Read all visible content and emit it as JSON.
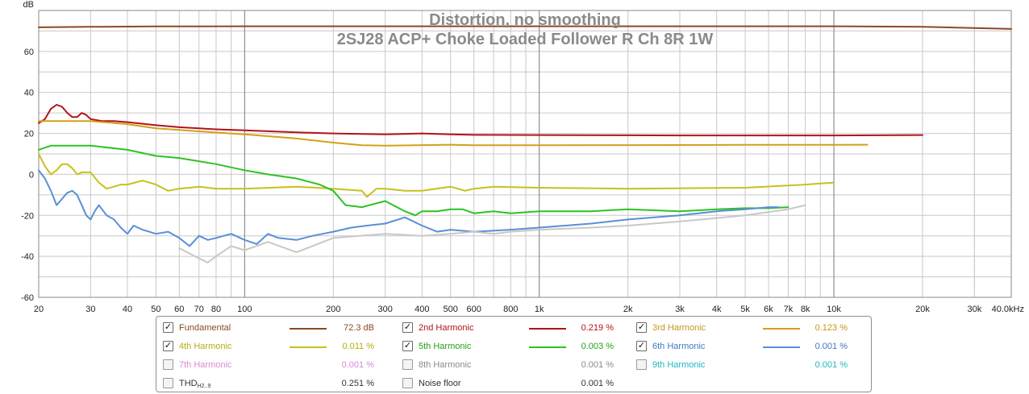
{
  "chart_data": {
    "type": "line",
    "title": "Distortion, no smoothing",
    "subtitle": "2SJ28 ACP+ Choke Loaded Follower R Ch 8R 1W",
    "ylabel": "dB",
    "xlabel": "",
    "x_scale": "log",
    "xlim": [
      20,
      40000
    ],
    "ylim": [
      -60,
      80
    ],
    "grid": true,
    "x_tick_labels": [
      {
        "v": 20,
        "t": "20"
      },
      {
        "v": 30,
        "t": "30"
      },
      {
        "v": 40,
        "t": "40"
      },
      {
        "v": 50,
        "t": "50"
      },
      {
        "v": 60,
        "t": "60"
      },
      {
        "v": 70,
        "t": "70"
      },
      {
        "v": 80,
        "t": "80"
      },
      {
        "v": 100,
        "t": "100"
      },
      {
        "v": 200,
        "t": "200"
      },
      {
        "v": 300,
        "t": "300"
      },
      {
        "v": 400,
        "t": "400"
      },
      {
        "v": 500,
        "t": "500"
      },
      {
        "v": 600,
        "t": "600"
      },
      {
        "v": 800,
        "t": "800"
      },
      {
        "v": 1000,
        "t": "1k"
      },
      {
        "v": 2000,
        "t": "2k"
      },
      {
        "v": 3000,
        "t": "3k"
      },
      {
        "v": 4000,
        "t": "4k"
      },
      {
        "v": 5000,
        "t": "5k"
      },
      {
        "v": 6000,
        "t": "6k"
      },
      {
        "v": 7000,
        "t": "7k"
      },
      {
        "v": 8000,
        "t": "8k"
      },
      {
        "v": 10000,
        "t": "10k"
      },
      {
        "v": 20000,
        "t": "20k"
      },
      {
        "v": 30000,
        "t": "30k"
      },
      {
        "v": 40000,
        "t": "40.0kHz"
      }
    ],
    "y_tick_labels": [
      {
        "v": 60,
        "t": "60"
      },
      {
        "v": 40,
        "t": "40"
      },
      {
        "v": 20,
        "t": "20"
      },
      {
        "v": 0,
        "t": "0"
      },
      {
        "v": -20,
        "t": "-20"
      },
      {
        "v": -40,
        "t": "-40"
      },
      {
        "v": -60,
        "t": "-60"
      }
    ],
    "series": [
      {
        "name": "Fundamental",
        "color": "#8b4a1f",
        "x": [
          20,
          30,
          50,
          100,
          200,
          500,
          1000,
          2000,
          5000,
          10000,
          20000,
          40000
        ],
        "y": [
          71.8,
          72.0,
          72.2,
          72.3,
          72.3,
          72.3,
          72.3,
          72.3,
          72.3,
          72.3,
          72.0,
          71.0
        ]
      },
      {
        "name": "2nd Harmonic",
        "color": "#b3121a",
        "x": [
          20,
          21,
          22,
          23,
          24,
          25,
          26,
          27,
          28,
          29,
          30,
          33,
          36,
          40,
          50,
          60,
          80,
          100,
          150,
          200,
          300,
          400,
          500,
          600,
          1000,
          2000,
          3000,
          5000,
          10000,
          20000
        ],
        "y": [
          25,
          27,
          32,
          34,
          33,
          30,
          28,
          28,
          30,
          29,
          27,
          26,
          26,
          25.5,
          24,
          23,
          22,
          21.5,
          20.5,
          20,
          19.5,
          20,
          19.5,
          19.3,
          19.2,
          19.1,
          19.0,
          19.0,
          19.0,
          19.2
        ]
      },
      {
        "name": "3rd Harmonic",
        "color": "#d4a017",
        "x": [
          20,
          25,
          30,
          40,
          50,
          70,
          100,
          150,
          200,
          250,
          300,
          400,
          500,
          600,
          1000,
          2000,
          5000,
          10000,
          13000
        ],
        "y": [
          26,
          26,
          26,
          24.5,
          22.5,
          21,
          19.5,
          17.5,
          15.5,
          14.2,
          14.0,
          14.3,
          14.5,
          14.2,
          14.2,
          14.3,
          14.4,
          14.4,
          14.5
        ]
      },
      {
        "name": "4th Harmonic",
        "color": "#c8c11b",
        "x": [
          20,
          21,
          22,
          23,
          24,
          25,
          26,
          27,
          28,
          30,
          32,
          34,
          36,
          38,
          40,
          45,
          50,
          55,
          60,
          70,
          80,
          100,
          150,
          200,
          250,
          260,
          280,
          300,
          350,
          400,
          500,
          560,
          600,
          700,
          1000,
          2000,
          5000,
          8000,
          10000
        ],
        "y": [
          10,
          4,
          0,
          2,
          5,
          5,
          3,
          0,
          1,
          1,
          -4,
          -7,
          -6,
          -5,
          -5,
          -3,
          -5,
          -8,
          -7,
          -6,
          -7,
          -7,
          -6,
          -7,
          -8,
          -11,
          -7,
          -7,
          -8,
          -8,
          -6,
          -8,
          -7,
          -6,
          -6.5,
          -7,
          -6.5,
          -5,
          -4
        ]
      },
      {
        "name": "5th Harmonic",
        "color": "#2ec224",
        "x": [
          20,
          22,
          25,
          30,
          40,
          50,
          60,
          80,
          100,
          120,
          150,
          180,
          200,
          220,
          250,
          300,
          350,
          380,
          400,
          450,
          500,
          550,
          600,
          700,
          800,
          1000,
          1500,
          2000,
          3000,
          4000,
          5000,
          6000,
          7000
        ],
        "y": [
          12,
          14,
          14,
          14,
          12,
          9,
          8,
          5,
          2,
          0,
          -2,
          -5,
          -8,
          -15,
          -16,
          -13,
          -18,
          -20,
          -18,
          -18,
          -17,
          -17,
          -19,
          -18,
          -19,
          -18,
          -18,
          -17,
          -18,
          -17,
          -16.5,
          -16.5,
          -16
        ]
      },
      {
        "name": "6th Harmonic",
        "color": "#5a8fd6",
        "x": [
          20,
          21,
          22,
          23,
          24,
          25,
          26,
          27,
          28,
          29,
          30,
          31,
          32,
          34,
          36,
          38,
          40,
          42,
          45,
          50,
          55,
          60,
          65,
          70,
          75,
          80,
          90,
          100,
          110,
          120,
          130,
          150,
          170,
          200,
          230,
          260,
          300,
          350,
          400,
          450,
          500,
          600,
          800,
          1000,
          1500,
          2000,
          3000,
          4000,
          5000,
          6000,
          6500
        ],
        "y": [
          2,
          -2,
          -8,
          -15,
          -12,
          -9,
          -8,
          -10,
          -15,
          -20,
          -22,
          -18,
          -15,
          -20,
          -22,
          -26,
          -29,
          -25,
          -27,
          -29,
          -28,
          -31,
          -35,
          -30,
          -32,
          -31,
          -29,
          -32,
          -34,
          -29,
          -31,
          -32,
          -30,
          -28,
          -26,
          -25,
          -24,
          -21,
          -25,
          -28,
          -27,
          -28,
          -27,
          -26,
          -24,
          -22,
          -20,
          -18,
          -17,
          -16,
          -16
        ]
      },
      {
        "name": "7th Harmonic",
        "color": "#d98ad4",
        "x": [],
        "y": []
      },
      {
        "name": "8th Harmonic",
        "color": "#9a9a9a",
        "x": [],
        "y": []
      },
      {
        "name": "9th Harmonic",
        "color": "#22c4cc",
        "x": [],
        "y": []
      },
      {
        "name": "THD H2..9",
        "color": "#555555",
        "x": [],
        "y": []
      },
      {
        "name": "Noise floor",
        "color": "#c8c8c8",
        "x": [
          60,
          70,
          75,
          80,
          90,
          100,
          120,
          150,
          200,
          300,
          400,
          500,
          600,
          700,
          800,
          1000,
          1500,
          2000,
          3000,
          5000,
          7000,
          8000
        ],
        "y": [
          -36,
          -41,
          -43,
          -40,
          -35,
          -37,
          -33,
          -38,
          -31,
          -29,
          -30,
          -29,
          -28,
          -29,
          -28,
          -27,
          -26,
          -25,
          -23,
          -20,
          -17,
          -15
        ]
      }
    ]
  },
  "legend": {
    "items": [
      {
        "label": "Fundamental",
        "value": "72.3 dB",
        "checked": true,
        "color": "#8b4a1f",
        "label_color": "#8b4a1f"
      },
      {
        "label": "2nd Harmonic",
        "value": "0.219 %",
        "checked": true,
        "color": "#b3121a",
        "label_color": "#b3121a"
      },
      {
        "label": "3rd Harmonic",
        "value": "0.123 %",
        "checked": true,
        "color": "#d4a017",
        "label_color": "#c8961a"
      },
      {
        "label": "4th Harmonic",
        "value": "0.011 %",
        "checked": true,
        "color": "#c8c11b",
        "label_color": "#b5ae10"
      },
      {
        "label": "5th Harmonic",
        "value": "0.003 %",
        "checked": true,
        "color": "#2ec224",
        "label_color": "#22a11a"
      },
      {
        "label": "6th Harmonic",
        "value": "0.001 %",
        "checked": true,
        "color": "#5a8fd6",
        "label_color": "#3d78c7"
      },
      {
        "label": "7th Harmonic",
        "value": "0.001 %",
        "checked": false,
        "color": "",
        "label_color": "#d98ad4"
      },
      {
        "label": "8th Harmonic",
        "value": "0.001 %",
        "checked": false,
        "color": "",
        "label_color": "#8a8a8a"
      },
      {
        "label": "9th Harmonic",
        "value": "0.001 %",
        "checked": false,
        "color": "",
        "label_color": "#1fb6bf"
      },
      {
        "label": "THD",
        "label_sub": "H2..9",
        "value": "0.251 %",
        "checked": false,
        "color": "",
        "label_color": "#333333"
      },
      {
        "label": "Noise floor",
        "value": "0.001 %",
        "checked": false,
        "color": "",
        "label_color": "#333333"
      }
    ]
  },
  "colors": {
    "grid": "#c9c9c9",
    "decade_grid": "#7a7a7a",
    "frame": "#888888",
    "title": "#8a8a8a"
  }
}
